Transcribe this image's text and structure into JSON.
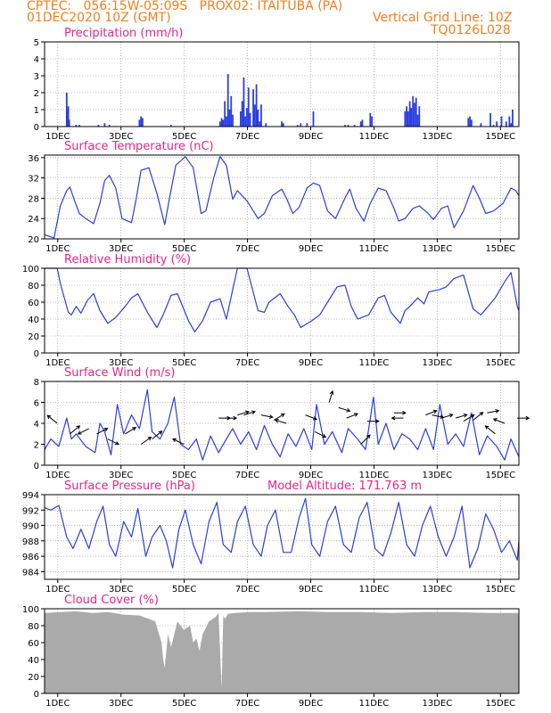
{
  "header": {
    "line1": "CPTEC:   056:15W-05:09S   PROX02: ITAITUBA (PA)",
    "line2_left": "01DEC2020 10Z (GMT)",
    "line2_right": "Vertical Grid Line: 10Z",
    "line3_right": "TQ0126L028"
  },
  "colors": {
    "header": "#f07f1e",
    "title": "#e8258a",
    "line": "#2b3fe0",
    "cloud": "#aaaaaa"
  },
  "chart_data": [
    {
      "type": "bar",
      "title": "Precipitation (mm/h)",
      "ylim": [
        0,
        5
      ],
      "yticks": [
        0,
        1,
        2,
        3,
        4,
        5
      ],
      "xlim": [
        1,
        16
      ],
      "xtick_labels": [
        "1DEC",
        "3DEC",
        "5DEC",
        "7DEC",
        "9DEC",
        "11DEC",
        "13DEC",
        "15DEC"
      ],
      "x": [
        1.7,
        1.72,
        1.75,
        1.78,
        2.0,
        2.1,
        2.7,
        2.9,
        3.05,
        4.0,
        4.05,
        4.1,
        5.0,
        6.55,
        6.6,
        6.65,
        6.7,
        6.75,
        6.8,
        6.85,
        6.9,
        6.95,
        7.2,
        7.25,
        7.3,
        7.35,
        7.4,
        7.45,
        7.5,
        7.6,
        7.65,
        7.7,
        7.75,
        7.8,
        7.85,
        8.0,
        8.5,
        8.55,
        9.0,
        9.1,
        9.3,
        9.5,
        10.5,
        10.6,
        10.8,
        11.0,
        11.05,
        11.3,
        11.35,
        12.4,
        12.45,
        12.5,
        12.55,
        12.6,
        12.65,
        12.7,
        12.75,
        12.8,
        12.85,
        14.4,
        14.45,
        14.5,
        14.8,
        15.1,
        15.2,
        15.3,
        15.45,
        15.6,
        15.7,
        15.75,
        15.8
      ],
      "values": [
        2.0,
        1.0,
        1.2,
        0.4,
        0.1,
        0.1,
        0.1,
        0.2,
        0.1,
        0.4,
        0.6,
        0.5,
        0.1,
        0.3,
        0.5,
        0.4,
        1.5,
        0.6,
        3.1,
        1.0,
        1.8,
        0.7,
        0.9,
        1.5,
        2.9,
        0.6,
        1.1,
        2.3,
        0.8,
        2.2,
        1.3,
        2.5,
        1.0,
        0.3,
        1.3,
        0.2,
        0.3,
        0.2,
        0.1,
        0.2,
        0.2,
        0.9,
        0.1,
        0.1,
        0.1,
        0.3,
        0.4,
        0.8,
        0.6,
        0.9,
        1.2,
        0.9,
        1.5,
        1.1,
        1.8,
        1.4,
        1.7,
        0.7,
        1.2,
        0.5,
        0.6,
        0.4,
        0.2,
        0.8,
        0.1,
        0.3,
        0.6,
        0.3,
        0.6,
        0.2,
        1.0
      ]
    },
    {
      "type": "line",
      "title": "Surface Temperature (nC)",
      "ylim": [
        20,
        36.5
      ],
      "yticks": [
        20,
        24,
        28,
        32,
        36
      ],
      "xlim": [
        1,
        16
      ],
      "xtick_labels": [
        "1DEC",
        "3DEC",
        "5DEC",
        "7DEC",
        "9DEC",
        "11DEC",
        "13DEC",
        "15DEC"
      ],
      "x": [
        1.0,
        1.3,
        1.5,
        1.7,
        1.8,
        1.95,
        2.1,
        2.3,
        2.55,
        2.75,
        2.9,
        3.05,
        3.25,
        3.45,
        3.75,
        3.9,
        4.05,
        4.3,
        4.55,
        4.8,
        4.95,
        5.15,
        5.45,
        5.7,
        5.95,
        6.1,
        6.35,
        6.55,
        6.75,
        6.95,
        7.1,
        7.4,
        7.75,
        7.95,
        8.2,
        8.5,
        8.65,
        8.85,
        9.05,
        9.3,
        9.5,
        9.7,
        9.95,
        10.2,
        10.5,
        10.65,
        10.85,
        11.1,
        11.3,
        11.55,
        11.8,
        12.05,
        12.2,
        12.4,
        12.65,
        12.85,
        13.1,
        13.3,
        13.55,
        13.75,
        13.95,
        14.25,
        14.55,
        14.75,
        14.95,
        15.2,
        15.5,
        15.75,
        15.9,
        16.0
      ],
      "values": [
        20.8,
        20.2,
        26.5,
        29.5,
        30.2,
        27.5,
        25.0,
        24.0,
        23.0,
        27.0,
        31.5,
        32.5,
        30.0,
        24.0,
        23.2,
        28.0,
        33.5,
        34.0,
        29.0,
        22.8,
        28.0,
        34.5,
        36.2,
        34.0,
        25.0,
        25.5,
        32.0,
        36.2,
        34.5,
        27.8,
        29.5,
        27.5,
        24.0,
        25.0,
        28.5,
        29.8,
        28.0,
        25.0,
        26.2,
        30.0,
        31.0,
        30.5,
        25.5,
        24.0,
        28.0,
        29.8,
        26.0,
        23.5,
        27.0,
        30.0,
        29.5,
        26.0,
        23.5,
        24.0,
        26.0,
        26.5,
        25.2,
        23.8,
        26.0,
        26.5,
        22.2,
        25.5,
        30.5,
        28.0,
        25.0,
        25.5,
        27.0,
        30.0,
        29.5,
        28.5
      ]
    },
    {
      "type": "line",
      "title": "Relative Humidity (%)",
      "ylim": [
        0,
        100
      ],
      "yticks": [
        0,
        20,
        40,
        60,
        80,
        100
      ],
      "xlim": [
        1,
        16
      ],
      "xtick_labels": [
        "1DEC",
        "3DEC",
        "5DEC",
        "7DEC",
        "9DEC",
        "11DEC",
        "13DEC",
        "15DEC"
      ],
      "x": [
        1.0,
        1.4,
        1.5,
        1.75,
        1.85,
        2.0,
        2.15,
        2.35,
        2.55,
        2.75,
        3.0,
        3.25,
        3.55,
        3.75,
        3.95,
        4.25,
        4.55,
        4.75,
        5.0,
        5.2,
        5.55,
        5.75,
        6.0,
        6.25,
        6.55,
        6.75,
        6.95,
        7.1,
        7.4,
        7.75,
        7.95,
        8.1,
        8.45,
        8.7,
        8.9,
        9.1,
        9.45,
        9.7,
        9.95,
        10.25,
        10.5,
        10.7,
        10.9,
        11.25,
        11.55,
        11.75,
        11.95,
        12.25,
        12.4,
        12.55,
        12.8,
        13.0,
        13.15,
        13.5,
        13.7,
        13.95,
        14.25,
        14.55,
        14.8,
        15.05,
        15.25,
        15.55,
        15.75,
        15.95,
        16.0
      ],
      "values": [
        100,
        100,
        82,
        48,
        45,
        55,
        47,
        62,
        70,
        50,
        35,
        42,
        55,
        65,
        70,
        48,
        30,
        45,
        68,
        70,
        38,
        25,
        38,
        60,
        64,
        40,
        75,
        100,
        100,
        50,
        48,
        60,
        70,
        55,
        45,
        30,
        38,
        45,
        60,
        78,
        80,
        55,
        40,
        45,
        65,
        68,
        48,
        35,
        50,
        55,
        65,
        58,
        72,
        75,
        78,
        88,
        92,
        52,
        45,
        56,
        65,
        84,
        95,
        55,
        50
      ]
    },
    {
      "type": "line",
      "title": "Surface Wind (m/s)",
      "ylim": [
        0,
        8
      ],
      "yticks": [
        0,
        2,
        4,
        6,
        8
      ],
      "xlim": [
        1,
        16
      ],
      "xtick_labels": [
        "1DEC",
        "3DEC",
        "5DEC",
        "7DEC",
        "9DEC",
        "11DEC",
        "13DEC",
        "15DEC"
      ],
      "x": [
        1.0,
        1.2,
        1.45,
        1.7,
        1.85,
        2.0,
        2.3,
        2.6,
        2.75,
        2.9,
        3.1,
        3.3,
        3.5,
        3.75,
        4.0,
        4.25,
        4.4,
        4.65,
        4.9,
        5.1,
        5.3,
        5.55,
        5.8,
        6.0,
        6.25,
        6.5,
        6.75,
        6.95,
        7.2,
        7.45,
        7.7,
        7.95,
        8.2,
        8.45,
        8.7,
        8.95,
        9.2,
        9.45,
        9.6,
        9.85,
        10.1,
        10.4,
        10.6,
        10.9,
        11.15,
        11.4,
        11.55,
        11.8,
        12.05,
        12.3,
        12.55,
        12.8,
        13.05,
        13.3,
        13.5,
        13.75,
        14.0,
        14.25,
        14.5,
        14.75,
        15.0,
        15.3,
        15.55,
        15.75,
        16.0
      ],
      "values": [
        1.5,
        2.5,
        1.8,
        4.5,
        2.5,
        3.0,
        1.8,
        1.2,
        4.0,
        3.2,
        1.0,
        5.8,
        3.0,
        4.8,
        3.5,
        7.2,
        3.2,
        2.5,
        4.0,
        6.5,
        2.0,
        1.5,
        2.5,
        0.5,
        2.8,
        1.2,
        2.5,
        3.5,
        2.0,
        3.2,
        1.5,
        3.8,
        2.0,
        0.8,
        3.0,
        1.8,
        3.5,
        1.5,
        5.8,
        2.0,
        3.2,
        1.2,
        3.5,
        2.5,
        1.5,
        6.5,
        2.0,
        4.0,
        1.5,
        3.0,
        2.5,
        1.5,
        3.5,
        1.5,
        5.8,
        2.0,
        3.0,
        1.8,
        5.0,
        1.0,
        2.8,
        1.8,
        0.5,
        2.5,
        0.8
      ]
    },
    {
      "type": "line",
      "title": "Surface Pressure (hPa)",
      "annotation": "Model Altitude: 171.763 m",
      "ylim": [
        983,
        994
      ],
      "yticks": [
        984,
        986,
        988,
        990,
        992,
        994
      ],
      "xlim": [
        1,
        16
      ],
      "xtick_labels": [
        "1DEC",
        "3DEC",
        "5DEC",
        "7DEC",
        "9DEC",
        "11DEC",
        "13DEC",
        "15DEC"
      ],
      "x": [
        1.0,
        1.2,
        1.45,
        1.7,
        1.9,
        2.15,
        2.4,
        2.65,
        2.85,
        3.05,
        3.25,
        3.5,
        3.75,
        3.95,
        4.2,
        4.4,
        4.65,
        4.85,
        5.05,
        5.25,
        5.45,
        5.7,
        5.95,
        6.2,
        6.45,
        6.65,
        6.9,
        7.1,
        7.35,
        7.6,
        7.85,
        8.05,
        8.3,
        8.55,
        8.8,
        9.05,
        9.25,
        9.45,
        9.7,
        9.95,
        10.2,
        10.45,
        10.7,
        10.95,
        11.2,
        11.45,
        11.7,
        11.95,
        12.2,
        12.45,
        12.7,
        12.95,
        13.2,
        13.45,
        13.7,
        13.95,
        14.2,
        14.45,
        14.7,
        14.95,
        15.2,
        15.45,
        15.7,
        15.95,
        16.0
      ],
      "values": [
        992.3,
        992.0,
        992.6,
        988.5,
        987.0,
        989.5,
        987.0,
        990.5,
        992.5,
        987.5,
        986.0,
        990.5,
        988.5,
        992.2,
        986.0,
        988.5,
        990.0,
        988.0,
        984.5,
        989.5,
        992.0,
        987.5,
        985.0,
        990.5,
        993.0,
        987.5,
        986.5,
        990.5,
        992.5,
        987.5,
        986.0,
        990.0,
        992.0,
        986.5,
        986.5,
        991.0,
        993.5,
        987.5,
        986.0,
        990.5,
        992.5,
        987.5,
        986.5,
        991.0,
        993.0,
        987.0,
        986.0,
        989.0,
        993.0,
        987.5,
        986.0,
        990.0,
        992.5,
        988.5,
        986.0,
        988.5,
        992.5,
        984.5,
        987.0,
        991.5,
        989.5,
        986.5,
        988.0,
        985.5,
        988.0
      ]
    },
    {
      "type": "area",
      "title": "Cloud Cover (%)",
      "ylim": [
        0,
        100
      ],
      "yticks": [
        0,
        20,
        40,
        60,
        80,
        100
      ],
      "xlim": [
        1,
        16
      ],
      "xtick_labels": [
        "1DEC",
        "3DEC",
        "5DEC",
        "7DEC",
        "9DEC",
        "11DEC",
        "13DEC",
        "15DEC"
      ],
      "x": [
        1.0,
        1.5,
        2.0,
        2.5,
        3.0,
        3.5,
        4.0,
        4.3,
        4.5,
        4.7,
        4.75,
        4.8,
        4.9,
        5.0,
        5.2,
        5.4,
        5.6,
        5.7,
        5.8,
        5.9,
        6.0,
        6.2,
        6.4,
        6.5,
        6.6,
        6.65,
        6.7,
        6.8,
        7.0,
        7.5,
        8.0,
        9.0,
        10.0,
        11.0,
        12.0,
        13.0,
        14.0,
        15.0,
        16.0
      ],
      "values": [
        95,
        96,
        97,
        95,
        96,
        93,
        92,
        88,
        85,
        60,
        40,
        30,
        70,
        55,
        85,
        75,
        80,
        60,
        65,
        50,
        70,
        85,
        90,
        95,
        5,
        92,
        88,
        94,
        95,
        96,
        96,
        97,
        96,
        96,
        95,
        96,
        96,
        95,
        95
      ]
    }
  ],
  "wind_arrows": {
    "x": [
      1.4,
      1.8,
      2.4,
      2.65,
      3.0,
      3.55,
      4.05,
      4.4,
      5.4,
      6.5,
      6.7,
      7.1,
      7.3,
      7.85,
      8.25,
      8.65,
      9.25,
      9.55,
      10.0,
      10.3,
      10.55,
      11.0,
      11.2,
      12.05,
      12.35,
      13.05,
      13.25,
      13.55,
      14.0,
      14.25,
      14.55,
      15.0,
      15.25,
      15.55,
      15.95
    ],
    "speed": [
      4.0,
      3.0,
      3.5,
      3.0,
      2.5,
      3.0,
      2.0,
      2.5,
      2.0,
      4.5,
      4.5,
      4.8,
      4.8,
      4.8,
      4.3,
      4.0,
      4.8,
      3.2,
      6.0,
      5.5,
      4.5,
      2.0,
      4.2,
      5.0,
      4.5,
      4.8,
      4.8,
      4.5,
      4.5,
      4.2,
      4.3,
      5.0,
      3.0,
      4.0,
      4.5
    ],
    "u": [
      -1,
      1,
      -1,
      1,
      1,
      1,
      1,
      1,
      -1,
      1,
      1,
      1,
      1,
      1,
      1,
      -1,
      1,
      1,
      0.3,
      1,
      1,
      1,
      1,
      1,
      -1,
      1,
      1,
      1,
      1,
      1,
      1,
      1,
      -1,
      -1,
      1
    ],
    "v": [
      0.8,
      0.8,
      -0.5,
      0.5,
      -0.5,
      0.6,
      0.7,
      0.8,
      0.5,
      0,
      0,
      0.3,
      0.3,
      -0.2,
      0.6,
      0.3,
      -0.4,
      -0.5,
      1,
      -0.3,
      0.4,
      1,
      0,
      0,
      0,
      0.4,
      -0.2,
      0.3,
      0.3,
      0.6,
      0.8,
      0.2,
      0.8,
      0.4,
      0
    ]
  }
}
